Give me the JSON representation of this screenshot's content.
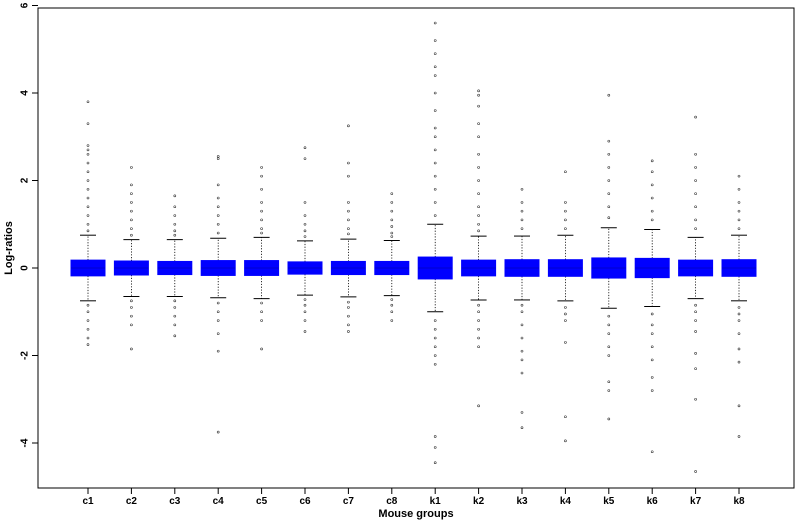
{
  "chart_data": {
    "type": "boxplot",
    "title": "",
    "xlabel": "Mouse groups",
    "ylabel": "Log-ratios",
    "ylim": [
      -5,
      6
    ],
    "yticks": [
      -4,
      -2,
      0,
      2,
      4,
      6
    ],
    "grid": false,
    "legend": "none",
    "box_color": "#0000ff",
    "categories": [
      "c1",
      "c2",
      "c3",
      "c4",
      "c5",
      "c6",
      "c7",
      "c8",
      "k1",
      "k2",
      "k3",
      "k4",
      "k5",
      "k6",
      "k7",
      "k8"
    ],
    "series": [
      {
        "q1": -0.18,
        "median": 0.0,
        "q3": 0.18,
        "whisker_low": -0.75,
        "whisker_high": 0.75,
        "outliers": [
          3.8,
          3.3,
          2.8,
          2.7,
          2.6,
          2.4,
          2.2,
          2.0,
          1.8,
          1.6,
          1.4,
          1.2,
          1.0,
          0.85,
          -0.85,
          -1.0,
          -1.2,
          -1.4,
          -1.6,
          -1.75
        ]
      },
      {
        "q1": -0.16,
        "median": 0.0,
        "q3": 0.16,
        "whisker_low": -0.65,
        "whisker_high": 0.65,
        "outliers": [
          2.3,
          1.9,
          1.7,
          1.5,
          1.3,
          1.1,
          0.9,
          0.75,
          -0.75,
          -0.9,
          -1.1,
          -1.3,
          -1.85
        ]
      },
      {
        "q1": -0.15,
        "median": 0.0,
        "q3": 0.15,
        "whisker_low": -0.65,
        "whisker_high": 0.65,
        "outliers": [
          1.65,
          1.4,
          1.2,
          1.0,
          0.85,
          0.75,
          -0.75,
          -0.9,
          -1.1,
          -1.3,
          -1.55
        ]
      },
      {
        "q1": -0.17,
        "median": 0.0,
        "q3": 0.17,
        "whisker_low": -0.68,
        "whisker_high": 0.68,
        "outliers": [
          2.55,
          2.5,
          1.9,
          1.6,
          1.4,
          1.2,
          1.0,
          0.8,
          -0.8,
          -1.0,
          -1.2,
          -1.5,
          -1.9,
          -3.75
        ]
      },
      {
        "q1": -0.17,
        "median": 0.0,
        "q3": 0.17,
        "whisker_low": -0.7,
        "whisker_high": 0.7,
        "outliers": [
          2.3,
          2.1,
          1.8,
          1.5,
          1.3,
          1.1,
          0.9,
          0.8,
          -0.8,
          -1.0,
          -1.2,
          -1.85
        ]
      },
      {
        "q1": -0.14,
        "median": 0.0,
        "q3": 0.14,
        "whisker_low": -0.62,
        "whisker_high": 0.62,
        "outliers": [
          2.75,
          2.5,
          1.5,
          1.2,
          1.0,
          0.85,
          0.72,
          -0.72,
          -0.85,
          -1.0,
          -1.2,
          -1.45
        ]
      },
      {
        "q1": -0.15,
        "median": 0.0,
        "q3": 0.15,
        "whisker_low": -0.66,
        "whisker_high": 0.66,
        "outliers": [
          3.25,
          2.4,
          2.1,
          1.5,
          1.3,
          1.1,
          0.9,
          0.78,
          -0.78,
          -0.9,
          -1.1,
          -1.3,
          -1.45
        ]
      },
      {
        "q1": -0.15,
        "median": 0.0,
        "q3": 0.15,
        "whisker_low": -0.63,
        "whisker_high": 0.63,
        "outliers": [
          1.7,
          1.5,
          1.3,
          1.1,
          0.95,
          0.8,
          0.72,
          -0.72,
          -0.85,
          -1.0,
          -1.2
        ]
      },
      {
        "q1": -0.25,
        "median": 0.0,
        "q3": 0.25,
        "whisker_low": -1.0,
        "whisker_high": 1.0,
        "outliers": [
          5.6,
          5.2,
          4.9,
          4.6,
          4.4,
          4.0,
          3.6,
          3.2,
          3.0,
          2.7,
          2.4,
          2.1,
          1.8,
          1.5,
          1.2,
          -1.2,
          -1.4,
          -1.6,
          -1.8,
          -2.0,
          -2.2,
          -3.85,
          -4.1,
          -4.45
        ]
      },
      {
        "q1": -0.18,
        "median": 0.0,
        "q3": 0.18,
        "whisker_low": -0.73,
        "whisker_high": 0.73,
        "outliers": [
          4.05,
          3.95,
          3.7,
          3.3,
          3.0,
          2.6,
          2.3,
          2.0,
          1.7,
          1.4,
          1.2,
          1.0,
          0.85,
          -0.85,
          -1.0,
          -1.2,
          -1.4,
          -1.6,
          -1.8,
          -3.15
        ]
      },
      {
        "q1": -0.19,
        "median": 0.0,
        "q3": 0.19,
        "whisker_low": -0.73,
        "whisker_high": 0.73,
        "outliers": [
          1.8,
          1.5,
          1.3,
          1.1,
          0.9,
          -0.85,
          -1.0,
          -1.3,
          -1.6,
          -1.9,
          -2.1,
          -2.4,
          -3.3,
          -3.65
        ]
      },
      {
        "q1": -0.19,
        "median": 0.0,
        "q3": 0.19,
        "whisker_low": -0.75,
        "whisker_high": 0.75,
        "outliers": [
          2.2,
          1.5,
          1.3,
          1.1,
          0.9,
          -0.9,
          -1.05,
          -1.2,
          -1.7,
          -3.4,
          -3.95
        ]
      },
      {
        "q1": -0.23,
        "median": 0.0,
        "q3": 0.23,
        "whisker_low": -0.92,
        "whisker_high": 0.92,
        "outliers": [
          3.95,
          2.9,
          2.6,
          2.3,
          2.0,
          1.7,
          1.4,
          1.15,
          -1.1,
          -1.3,
          -1.5,
          -1.8,
          -2.0,
          -2.6,
          -2.8,
          -3.45
        ]
      },
      {
        "q1": -0.22,
        "median": 0.0,
        "q3": 0.22,
        "whisker_low": -0.88,
        "whisker_high": 0.88,
        "outliers": [
          2.45,
          2.2,
          1.9,
          1.6,
          1.3,
          1.1,
          -1.05,
          -1.3,
          -1.5,
          -1.8,
          -2.1,
          -2.5,
          -2.8,
          -4.2
        ]
      },
      {
        "q1": -0.18,
        "median": 0.0,
        "q3": 0.18,
        "whisker_low": -0.7,
        "whisker_high": 0.7,
        "outliers": [
          3.45,
          2.6,
          2.3,
          2.0,
          1.7,
          1.4,
          1.1,
          0.9,
          -0.85,
          -1.0,
          -1.2,
          -1.45,
          -1.95,
          -2.3,
          -3.0,
          -4.65
        ]
      },
      {
        "q1": -0.19,
        "median": 0.0,
        "q3": 0.19,
        "whisker_low": -0.75,
        "whisker_high": 0.75,
        "outliers": [
          2.1,
          1.8,
          1.5,
          1.3,
          1.1,
          0.9,
          -0.9,
          -1.05,
          -1.2,
          -1.5,
          -1.85,
          -2.15,
          -3.15,
          -3.85
        ]
      }
    ]
  }
}
